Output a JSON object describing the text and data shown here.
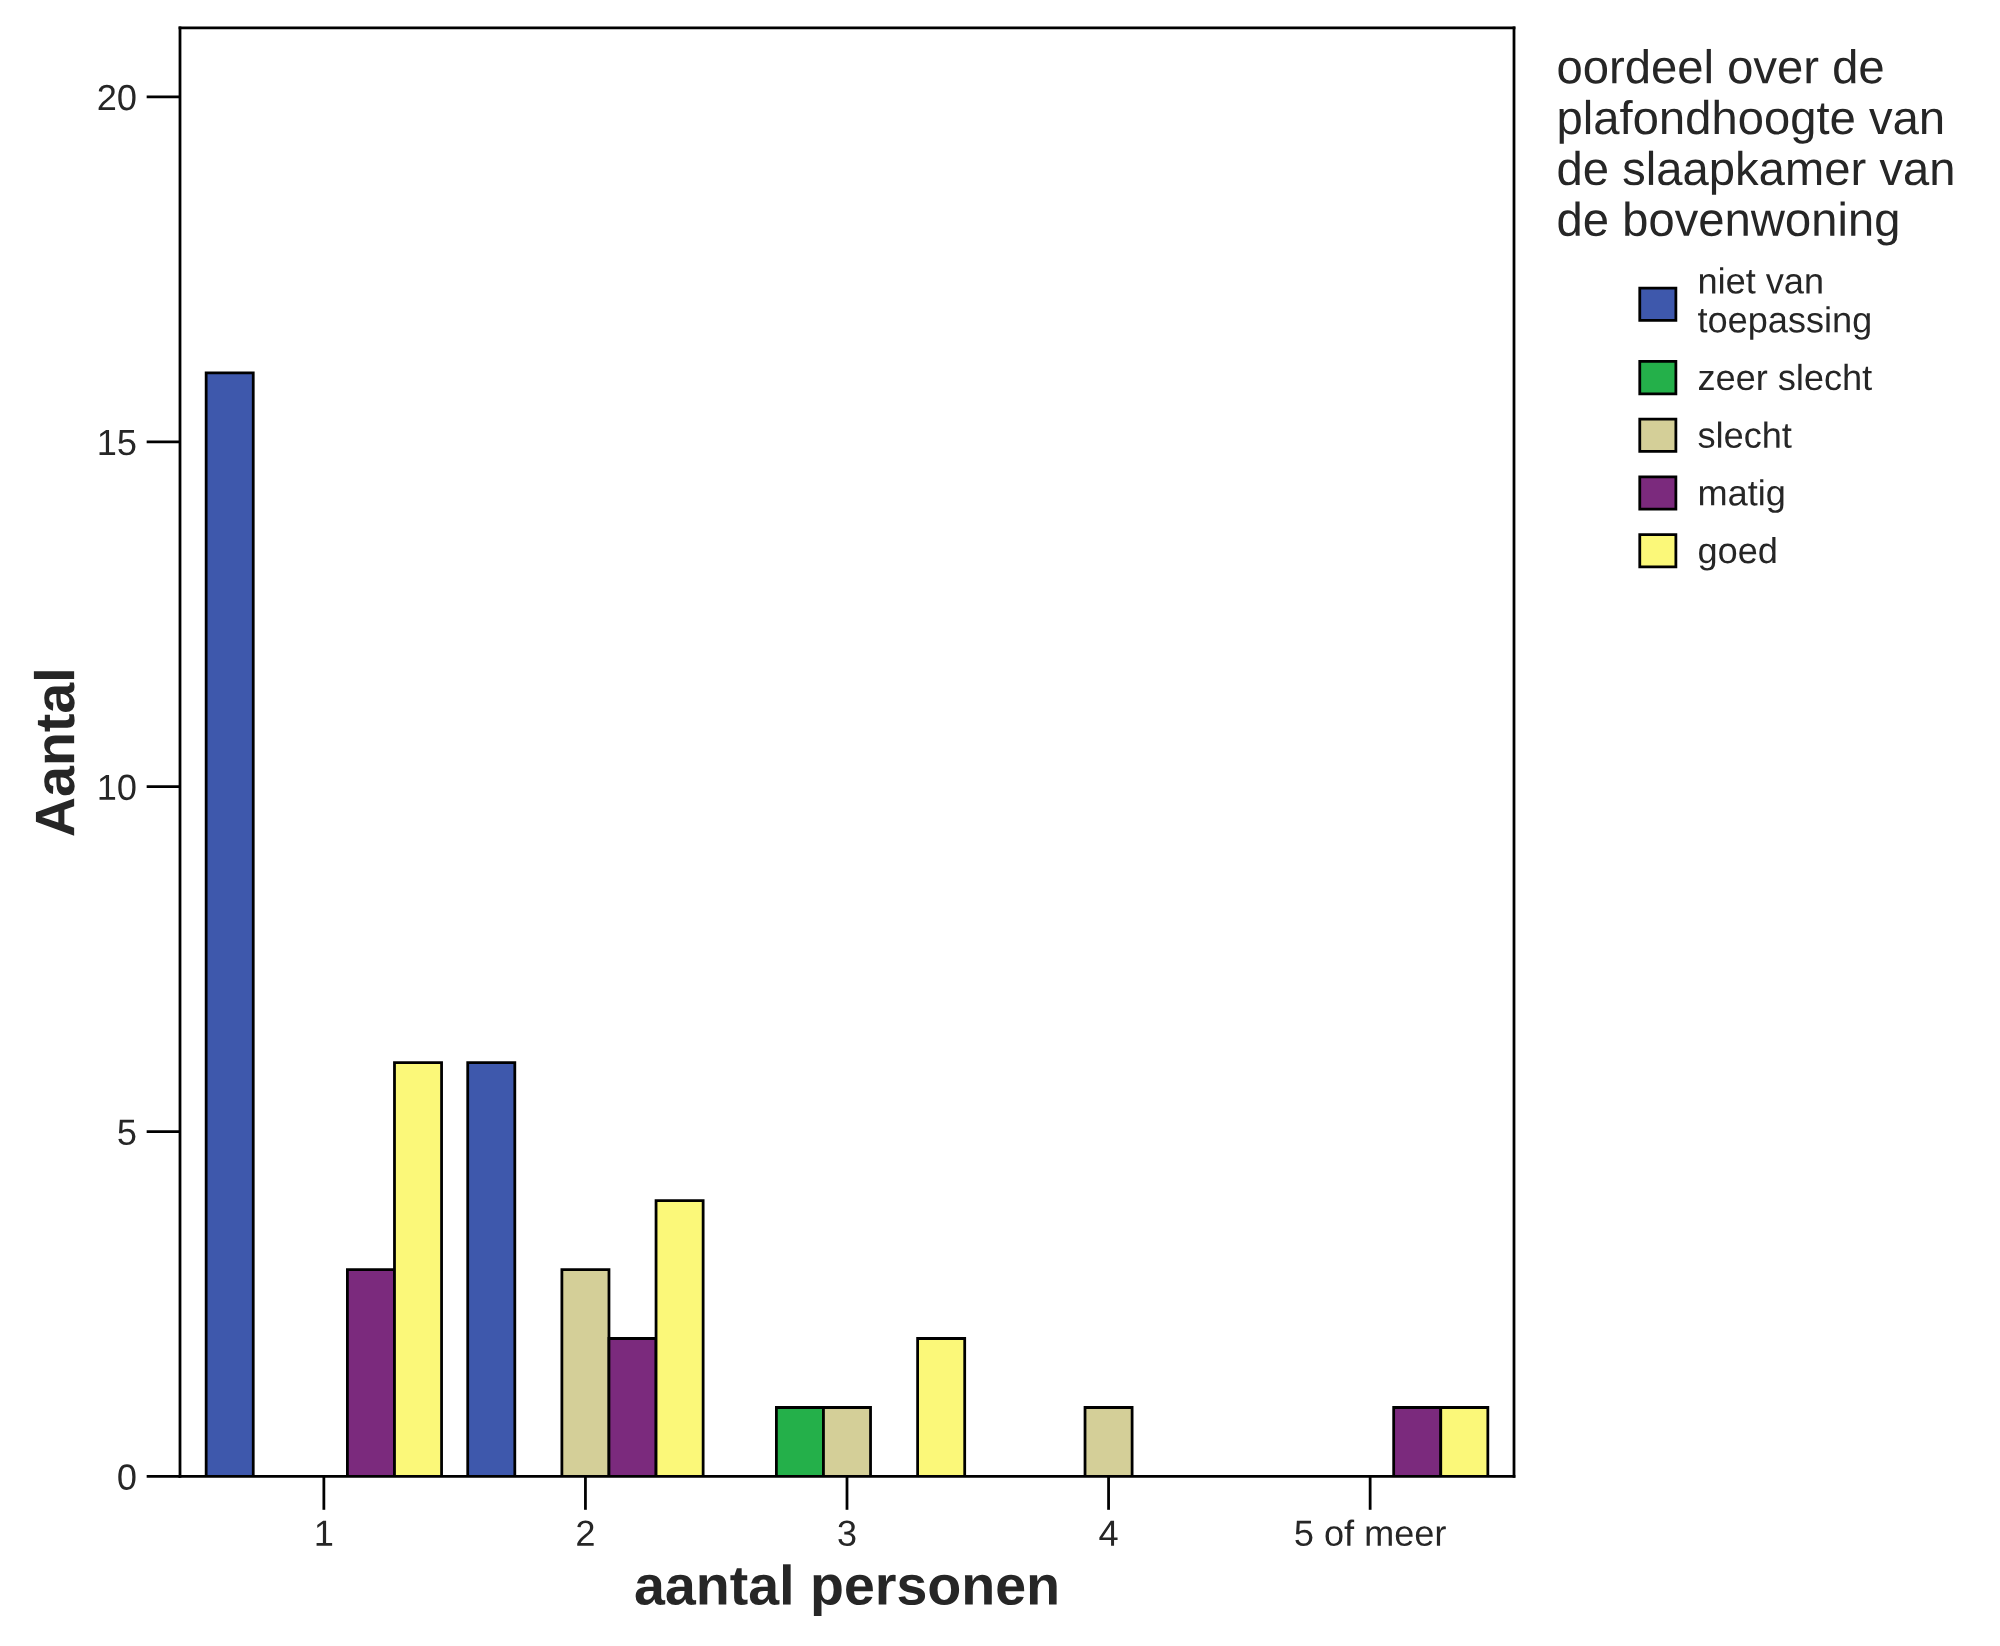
{
  "chart_data": {
    "type": "bar",
    "categories": [
      "1",
      "2",
      "3",
      "4",
      "5 of meer"
    ],
    "xlabel": "aantal personen",
    "ylabel": "Aantal",
    "legend_title": "oordeel over de\nplafondhoogte van\nde slaapkamer van\nde bovenwoning",
    "series": [
      {
        "name": "niet van\ntoepassing",
        "color": "#3e58ac",
        "values": [
          16,
          6,
          null,
          null,
          null
        ]
      },
      {
        "name": "zeer slecht",
        "color": "#24b04a",
        "values": [
          null,
          null,
          1,
          null,
          null
        ]
      },
      {
        "name": "slecht",
        "color": "#d4cf98",
        "values": [
          null,
          3,
          1,
          1,
          null
        ]
      },
      {
        "name": "matig",
        "color": "#7b2a7d",
        "values": [
          3,
          2,
          null,
          null,
          1
        ]
      },
      {
        "name": "goed",
        "color": "#fbf879",
        "values": [
          6,
          4,
          2,
          null,
          1
        ]
      }
    ],
    "ylim": [
      0,
      21
    ],
    "yticks": [
      0,
      5,
      10,
      15,
      20
    ],
    "grid": false,
    "legend": "top right"
  }
}
